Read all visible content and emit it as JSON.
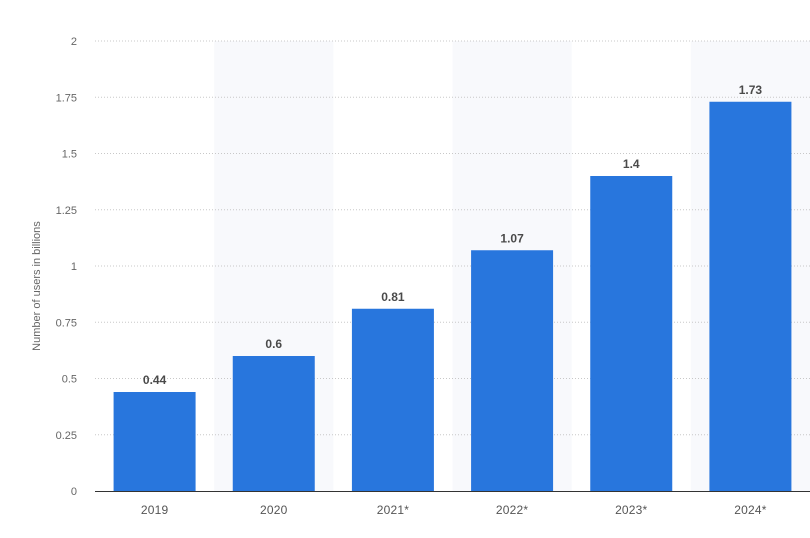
{
  "chart_data": {
    "type": "bar",
    "categories": [
      "2019",
      "2020",
      "2021*",
      "2022*",
      "2023*",
      "2024*"
    ],
    "values": [
      0.44,
      0.6,
      0.81,
      1.07,
      1.4,
      1.73
    ],
    "data_labels": [
      "0.44",
      "0.6",
      "0.81",
      "1.07",
      "1.4",
      "1.73"
    ],
    "ylabel": "Number of users in billions",
    "ylim": [
      0,
      2
    ],
    "yticks": [
      0,
      0.25,
      0.5,
      0.75,
      1,
      1.25,
      1.5,
      1.75,
      2
    ],
    "ytick_labels": [
      "0",
      "0.25",
      "0.5",
      "0.75",
      "1",
      "1.25",
      "1.5",
      "1.75",
      "2"
    ],
    "grid": true,
    "legend": "none",
    "bar_color": "#2876dd",
    "band_color": "#f8f9fc"
  }
}
